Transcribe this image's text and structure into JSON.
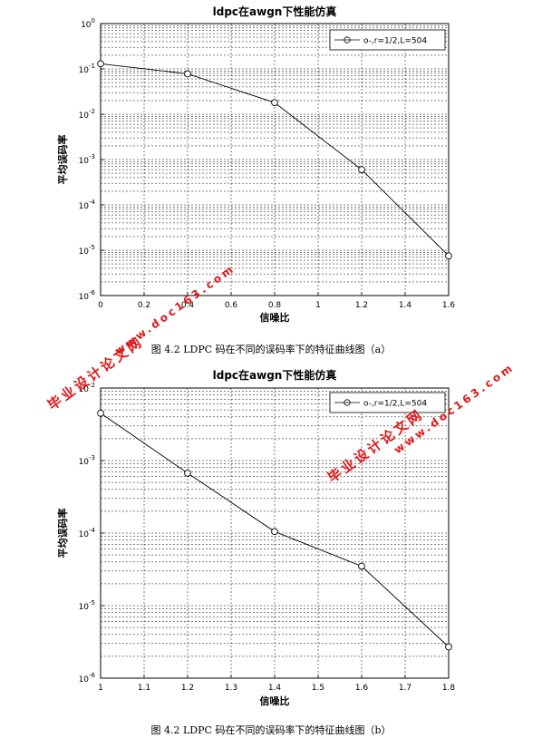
{
  "chart_data": [
    {
      "type": "line",
      "title": "ldpc在awgn下性能仿真",
      "xlabel": "信噪比",
      "ylabel": "平均误码率",
      "yscale": "log",
      "xlim": [
        0,
        1.6
      ],
      "ylim": [
        1e-06,
        1
      ],
      "x_ticks": [
        "0",
        "0.2",
        "0.4",
        "0.6",
        "0.8",
        "1",
        "1.2",
        "1.4",
        "1.6"
      ],
      "y_ticks": [
        {
          "base": "10",
          "exp": "0"
        },
        {
          "base": "10",
          "exp": "-1"
        },
        {
          "base": "10",
          "exp": "-2"
        },
        {
          "base": "10",
          "exp": "-3"
        },
        {
          "base": "10",
          "exp": "-4"
        },
        {
          "base": "10",
          "exp": "-5"
        },
        {
          "base": "10",
          "exp": "-6"
        }
      ],
      "grid": true,
      "legend_position": "top-right",
      "series": [
        {
          "name": "o-,r=1/2,L=504",
          "marker": "circle",
          "color": "#000000",
          "x": [
            0,
            0.4,
            0.8,
            1.2,
            1.6
          ],
          "y": [
            0.13,
            0.078,
            0.018,
            0.0006,
            7.5e-06
          ]
        }
      ]
    },
    {
      "type": "line",
      "title": "ldpc在awgn下性能仿真",
      "xlabel": "信噪比",
      "ylabel": "平均误码率",
      "yscale": "log",
      "xlim": [
        1,
        1.8
      ],
      "ylim": [
        1e-06,
        0.01
      ],
      "x_ticks": [
        "1",
        "1.1",
        "1.2",
        "1.3",
        "1.4",
        "1.5",
        "1.6",
        "1.7",
        "1.8"
      ],
      "y_ticks": [
        {
          "base": "10",
          "exp": "-2"
        },
        {
          "base": "10",
          "exp": "-3"
        },
        {
          "base": "10",
          "exp": "-4"
        },
        {
          "base": "10",
          "exp": "-5"
        },
        {
          "base": "10",
          "exp": "-6"
        }
      ],
      "grid": true,
      "legend_position": "top-right",
      "series": [
        {
          "name": "o-,r=1/2,L=504",
          "marker": "circle",
          "color": "#000000",
          "x": [
            1,
            1.2,
            1.4,
            1.6,
            1.8
          ],
          "y": [
            0.0045,
            0.00067,
            0.000105,
            3.5e-05,
            2.7e-06
          ]
        }
      ]
    }
  ],
  "captions": [
    "图 4.2 LDPC 码在不同的误码率下的特征曲线图（a）",
    "图 4.2 LDPC 码在不同的误码率下的特征曲线图（b）"
  ],
  "watermarks": {
    "text_cn": "毕业设计论文网",
    "text_url": "www.doc163.com",
    "color": "#e01818"
  }
}
